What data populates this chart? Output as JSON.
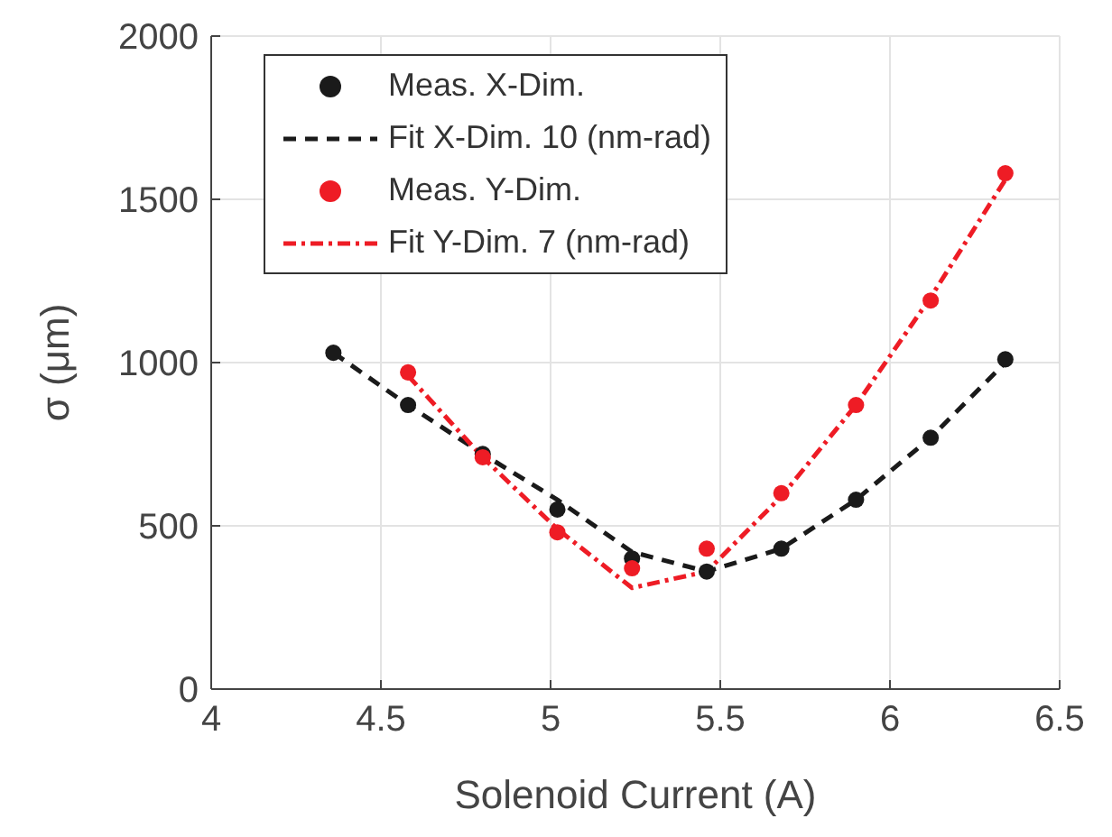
{
  "chart_data": {
    "type": "scatter",
    "xlabel": "Solenoid Current (A)",
    "ylabel": "σ (μm)",
    "x": [
      4.36,
      4.58,
      4.8,
      5.02,
      5.24,
      5.46,
      5.68,
      5.9,
      6.12,
      6.34
    ],
    "xlim": [
      4,
      6.5
    ],
    "xticks": [
      4,
      4.5,
      5,
      5.5,
      6,
      6.5
    ],
    "ylim": [
      0,
      2000
    ],
    "yticks": [
      0,
      500,
      1000,
      1500,
      2000
    ],
    "grid": true,
    "legend": "top left",
    "series": [
      {
        "name": "Meas. X-Dim.",
        "marker": "circle",
        "color": "#1a1a1a",
        "values": [
          1030,
          870,
          720,
          550,
          400,
          360,
          430,
          580,
          770,
          1010
        ]
      },
      {
        "name": "Fit X-Dim. 10 (nm-rad)",
        "type": "line",
        "marker": "none",
        "line_style": "dashed",
        "color": "#1a1a1a",
        "values": [
          1030,
          870,
          720,
          580,
          420,
          360,
          430,
          580,
          770,
          1000
        ]
      },
      {
        "name": "Meas. Y-Dim.",
        "marker": "circle",
        "color": "#ee1c25",
        "values": [
          null,
          970,
          710,
          480,
          370,
          430,
          600,
          870,
          1190,
          1580
        ]
      },
      {
        "name": "Fit Y-Dim. 7 (nm-rad)",
        "type": "line",
        "marker": "none",
        "line_style": "dashdot",
        "color": "#ee1c25",
        "values": [
          null,
          960,
          710,
          490,
          310,
          360,
          590,
          870,
          1200,
          1560
        ]
      }
    ]
  }
}
